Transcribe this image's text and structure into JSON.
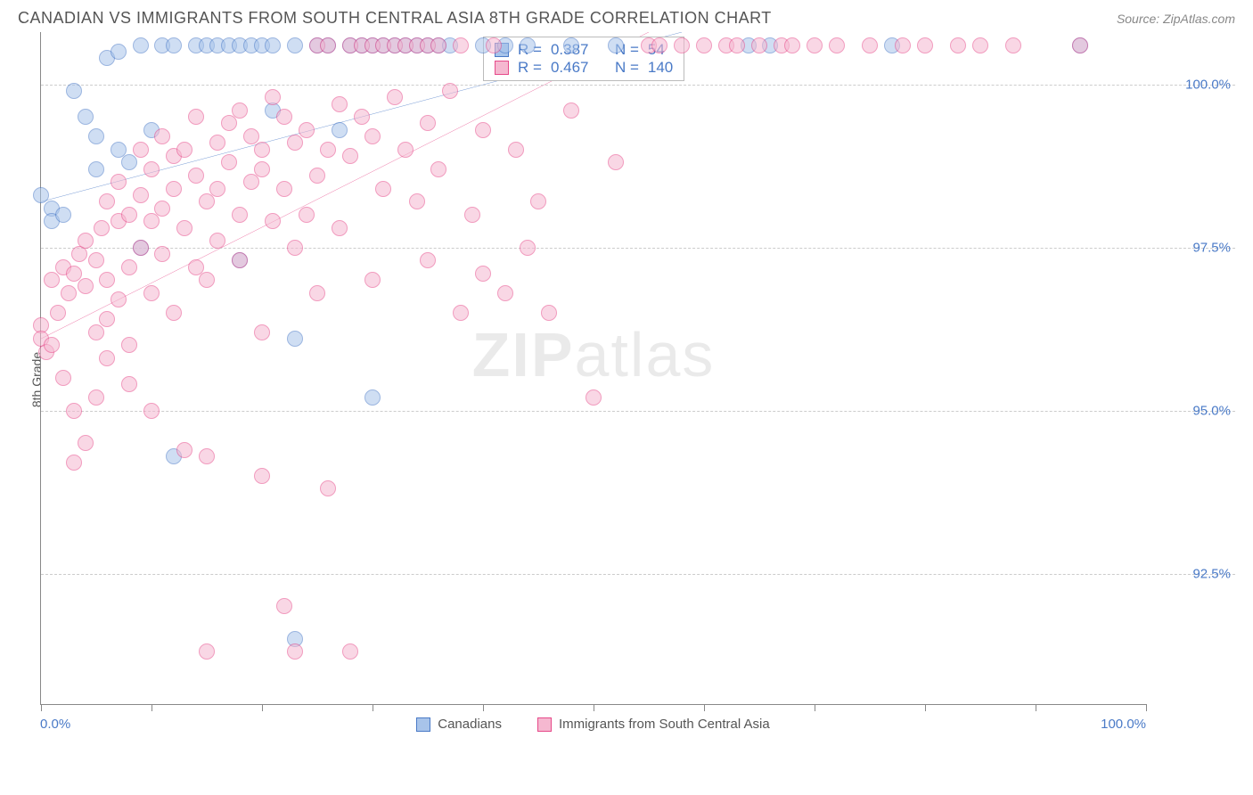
{
  "header": {
    "title": "CANADIAN VS IMMIGRANTS FROM SOUTH CENTRAL ASIA 8TH GRADE CORRELATION CHART",
    "source_prefix": "Source: ",
    "source_name": "ZipAtlas.com"
  },
  "chart": {
    "type": "scatter",
    "ylabel": "8th Grade",
    "xlim": [
      0,
      100
    ],
    "ylim": [
      90.5,
      100.8
    ],
    "xticks": [
      0,
      10,
      20,
      30,
      40,
      50,
      60,
      70,
      80,
      90,
      100
    ],
    "xtick_labels_shown": {
      "start": "0.0%",
      "end": "100.0%"
    },
    "yticks": [
      92.5,
      95.0,
      97.5,
      100.0
    ],
    "ytick_labels": [
      "92.5%",
      "95.0%",
      "97.5%",
      "100.0%"
    ],
    "grid_color": "#cccccc",
    "axis_color": "#888888",
    "background_color": "#ffffff",
    "ytick_label_color": "#4a7ac7",
    "xtick_label_color": "#4a7ac7",
    "marker_radius": 9,
    "marker_opacity": 0.55,
    "trend_line_width": 2.5,
    "watermark": {
      "text_bold": "ZIP",
      "text_light": "atlas"
    }
  },
  "series": [
    {
      "key": "canadians",
      "label": "Canadians",
      "color_stroke": "#4a7ac7",
      "color_fill": "#a8c4ea",
      "R": "0.387",
      "N": "54",
      "trend": {
        "x1": 0,
        "y1": 98.2,
        "x2": 58,
        "y2": 100.8
      },
      "points": [
        [
          0,
          98.3
        ],
        [
          1,
          98.1
        ],
        [
          1,
          97.9
        ],
        [
          2,
          98.0
        ],
        [
          3,
          99.9
        ],
        [
          4,
          99.5
        ],
        [
          5,
          98.7
        ],
        [
          5,
          99.2
        ],
        [
          6,
          100.4
        ],
        [
          7,
          99.0
        ],
        [
          7,
          100.5
        ],
        [
          8,
          98.8
        ],
        [
          9,
          100.6
        ],
        [
          9,
          97.5
        ],
        [
          10,
          99.3
        ],
        [
          11,
          100.6
        ],
        [
          12,
          100.6
        ],
        [
          12,
          94.3
        ],
        [
          14,
          100.6
        ],
        [
          15,
          100.6
        ],
        [
          16,
          100.6
        ],
        [
          17,
          100.6
        ],
        [
          18,
          100.6
        ],
        [
          18,
          97.3
        ],
        [
          19,
          100.6
        ],
        [
          20,
          100.6
        ],
        [
          21,
          100.6
        ],
        [
          21,
          99.6
        ],
        [
          23,
          100.6
        ],
        [
          23,
          96.1
        ],
        [
          23,
          91.5
        ],
        [
          25,
          100.6
        ],
        [
          26,
          100.6
        ],
        [
          27,
          99.3
        ],
        [
          28,
          100.6
        ],
        [
          29,
          100.6
        ],
        [
          30,
          100.6
        ],
        [
          30,
          95.2
        ],
        [
          31,
          100.6
        ],
        [
          32,
          100.6
        ],
        [
          33,
          100.6
        ],
        [
          34,
          100.6
        ],
        [
          35,
          100.6
        ],
        [
          36,
          100.6
        ],
        [
          37,
          100.6
        ],
        [
          40,
          100.6
        ],
        [
          42,
          100.6
        ],
        [
          44,
          100.6
        ],
        [
          48,
          100.6
        ],
        [
          52,
          100.6
        ],
        [
          64,
          100.6
        ],
        [
          66,
          100.6
        ],
        [
          77,
          100.6
        ],
        [
          94,
          100.6
        ]
      ]
    },
    {
      "key": "immigrants",
      "label": "Immigrants from South Central Asia",
      "color_stroke": "#e74a8a",
      "color_fill": "#f5b8d0",
      "R": "0.467",
      "N": "140",
      "trend": {
        "x1": 0,
        "y1": 96.1,
        "x2": 55,
        "y2": 100.8
      },
      "points": [
        [
          0,
          96.3
        ],
        [
          0,
          96.1
        ],
        [
          0.5,
          95.9
        ],
        [
          1,
          96.0
        ],
        [
          1,
          97.0
        ],
        [
          1.5,
          96.5
        ],
        [
          2,
          95.5
        ],
        [
          2,
          97.2
        ],
        [
          2.5,
          96.8
        ],
        [
          3,
          97.1
        ],
        [
          3,
          94.2
        ],
        [
          3,
          95.0
        ],
        [
          3.5,
          97.4
        ],
        [
          4,
          96.9
        ],
        [
          4,
          97.6
        ],
        [
          4,
          94.5
        ],
        [
          5,
          97.3
        ],
        [
          5,
          96.2
        ],
        [
          5,
          95.2
        ],
        [
          5.5,
          97.8
        ],
        [
          6,
          97.0
        ],
        [
          6,
          96.4
        ],
        [
          6,
          98.2
        ],
        [
          6,
          95.8
        ],
        [
          7,
          97.9
        ],
        [
          7,
          96.7
        ],
        [
          7,
          98.5
        ],
        [
          8,
          97.2
        ],
        [
          8,
          98.0
        ],
        [
          8,
          96.0
        ],
        [
          8,
          95.4
        ],
        [
          9,
          98.3
        ],
        [
          9,
          97.5
        ],
        [
          9,
          99.0
        ],
        [
          10,
          98.7
        ],
        [
          10,
          96.8
        ],
        [
          10,
          97.9
        ],
        [
          10,
          95.0
        ],
        [
          11,
          98.1
        ],
        [
          11,
          97.4
        ],
        [
          11,
          99.2
        ],
        [
          12,
          98.9
        ],
        [
          12,
          96.5
        ],
        [
          12,
          98.4
        ],
        [
          13,
          97.8
        ],
        [
          13,
          99.0
        ],
        [
          13,
          94.4
        ],
        [
          14,
          98.6
        ],
        [
          14,
          97.2
        ],
        [
          14,
          99.5
        ],
        [
          15,
          98.2
        ],
        [
          15,
          97.0
        ],
        [
          15,
          94.3
        ],
        [
          15,
          91.3
        ],
        [
          16,
          99.1
        ],
        [
          16,
          98.4
        ],
        [
          16,
          97.6
        ],
        [
          17,
          98.8
        ],
        [
          17,
          99.4
        ],
        [
          18,
          98.0
        ],
        [
          18,
          99.6
        ],
        [
          18,
          97.3
        ],
        [
          19,
          99.2
        ],
        [
          19,
          98.5
        ],
        [
          20,
          99.0
        ],
        [
          20,
          96.2
        ],
        [
          20,
          98.7
        ],
        [
          20,
          94.0
        ],
        [
          21,
          99.8
        ],
        [
          21,
          97.9
        ],
        [
          22,
          98.4
        ],
        [
          22,
          99.5
        ],
        [
          22,
          92.0
        ],
        [
          23,
          99.1
        ],
        [
          23,
          97.5
        ],
        [
          23,
          91.3
        ],
        [
          24,
          98.0
        ],
        [
          24,
          99.3
        ],
        [
          25,
          100.6
        ],
        [
          25,
          98.6
        ],
        [
          25,
          96.8
        ],
        [
          26,
          99.0
        ],
        [
          26,
          100.6
        ],
        [
          26,
          93.8
        ],
        [
          27,
          99.7
        ],
        [
          27,
          97.8
        ],
        [
          28,
          100.6
        ],
        [
          28,
          98.9
        ],
        [
          28,
          91.3
        ],
        [
          29,
          99.5
        ],
        [
          29,
          100.6
        ],
        [
          30,
          99.2
        ],
        [
          30,
          100.6
        ],
        [
          30,
          97.0
        ],
        [
          31,
          100.6
        ],
        [
          31,
          98.4
        ],
        [
          32,
          99.8
        ],
        [
          32,
          100.6
        ],
        [
          33,
          99.0
        ],
        [
          33,
          100.6
        ],
        [
          34,
          100.6
        ],
        [
          34,
          98.2
        ],
        [
          35,
          99.4
        ],
        [
          35,
          100.6
        ],
        [
          35,
          97.3
        ],
        [
          36,
          98.7
        ],
        [
          36,
          100.6
        ],
        [
          37,
          99.9
        ],
        [
          38,
          100.6
        ],
        [
          38,
          96.5
        ],
        [
          39,
          98.0
        ],
        [
          40,
          99.3
        ],
        [
          40,
          97.1
        ],
        [
          41,
          100.6
        ],
        [
          42,
          96.8
        ],
        [
          43,
          99.0
        ],
        [
          44,
          97.5
        ],
        [
          45,
          98.2
        ],
        [
          46,
          96.5
        ],
        [
          48,
          99.6
        ],
        [
          50,
          95.2
        ],
        [
          52,
          98.8
        ],
        [
          55,
          100.6
        ],
        [
          56,
          100.6
        ],
        [
          58,
          100.6
        ],
        [
          60,
          100.6
        ],
        [
          62,
          100.6
        ],
        [
          63,
          100.6
        ],
        [
          65,
          100.6
        ],
        [
          67,
          100.6
        ],
        [
          68,
          100.6
        ],
        [
          70,
          100.6
        ],
        [
          72,
          100.6
        ],
        [
          75,
          100.6
        ],
        [
          78,
          100.6
        ],
        [
          80,
          100.6
        ],
        [
          83,
          100.6
        ],
        [
          85,
          100.6
        ],
        [
          88,
          100.6
        ],
        [
          94,
          100.6
        ]
      ]
    }
  ],
  "stats_labels": {
    "R": "R =",
    "N": "N ="
  }
}
